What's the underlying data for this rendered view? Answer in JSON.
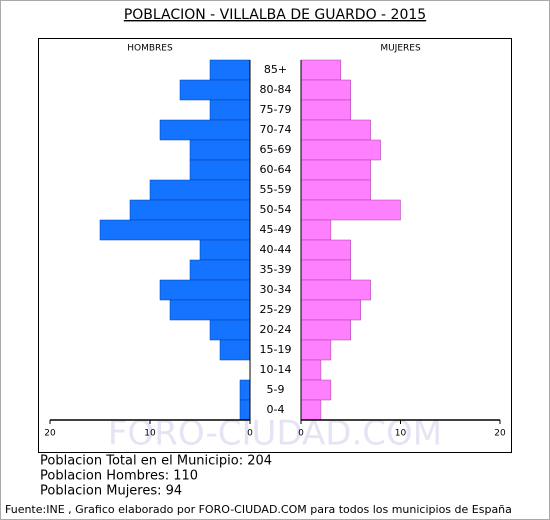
{
  "chart_data": {
    "type": "pyramid",
    "title": "POBLACION - VILLALBA DE GUARDO - 2015",
    "categories": [
      "85+",
      "80-84",
      "75-79",
      "70-74",
      "65-69",
      "60-64",
      "55-59",
      "50-54",
      "45-49",
      "40-44",
      "35-39",
      "30-34",
      "25-29",
      "20-24",
      "15-19",
      "10-14",
      "5-9",
      "0-4"
    ],
    "series": [
      {
        "name": "HOMBRES",
        "color": "#1473ff",
        "values": [
          4,
          7,
          4,
          9,
          6,
          6,
          10,
          12,
          15,
          5,
          6,
          9,
          8,
          4,
          3,
          0,
          1,
          1
        ]
      },
      {
        "name": "MUJERES",
        "color": "#ff80ff",
        "values": [
          4,
          5,
          5,
          7,
          8,
          7,
          7,
          10,
          3,
          5,
          5,
          7,
          6,
          5,
          3,
          2,
          3,
          2
        ]
      }
    ],
    "xlim": [
      0,
      20
    ],
    "xticks": [
      0,
      10,
      20
    ],
    "watermark": "FORO-CIUDAD.COM",
    "summary": [
      "Poblacion Total en el Municipio: 204",
      "Poblacion Hombres: 110",
      "Poblacion Mujeres: 94"
    ],
    "source": "Fuente:INE , Grafico elaborado por FORO-CIUDAD.COM para todos los municipios de España"
  }
}
